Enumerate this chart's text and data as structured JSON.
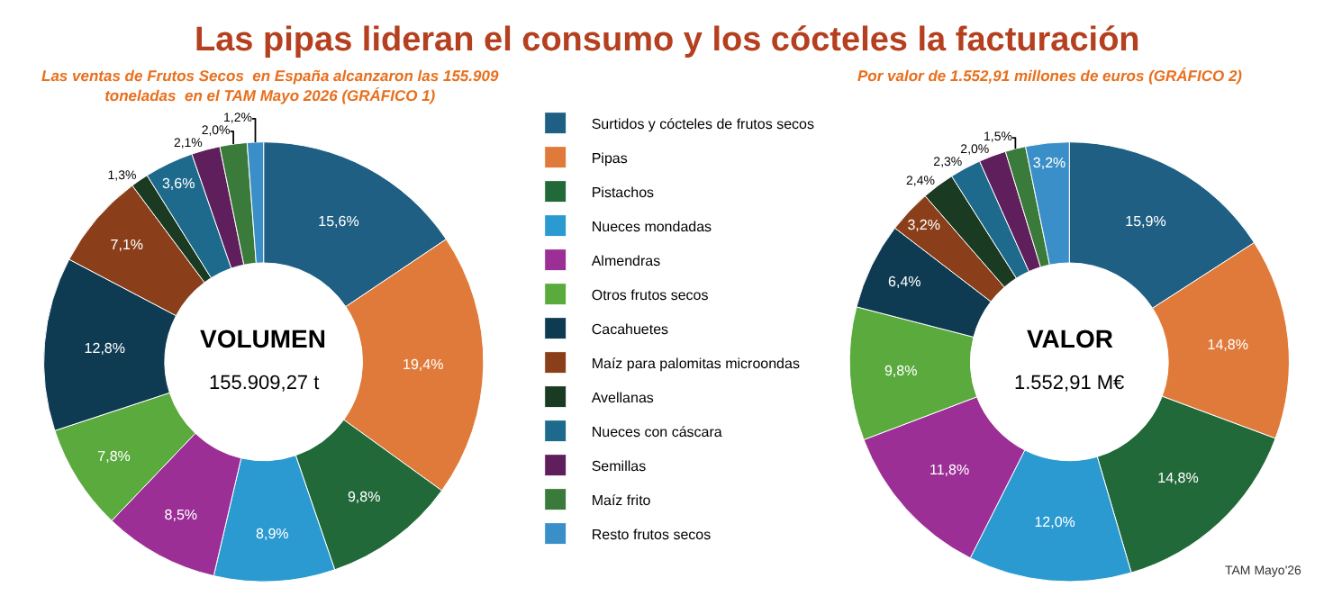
{
  "chart_data": [
    {
      "type": "donut",
      "title": "Las pipas lideran el consumo y los cócteles la facturación",
      "subtitle": "Las ventas de Frutos Secos  en España alcanzaron las 155.909 toneladas  en el TAM Mayo 2026 (GRÁFICO 1)",
      "categories": [
        "Surtidos y cócteles de frutos secos",
        "Pipas",
        "Pistachos",
        "Nueces mondadas",
        "Almendras",
        "Otros frutos secos",
        "Cacahuetes",
        "Maíz para palomitas microondas",
        "Avellanas",
        "Nueces con cáscara",
        "Semillas",
        "Maíz frito",
        "Resto frutos secos"
      ],
      "values": [
        15.6,
        19.4,
        9.8,
        8.9,
        8.5,
        7.8,
        12.8,
        7.1,
        1.3,
        3.6,
        2.1,
        2.0,
        1.2
      ],
      "value_labels": [
        "15,6%",
        "19,4%",
        "9,8%",
        "8,9%",
        "8,5%",
        "7,8%",
        "12,8%",
        "7,1%",
        "1,3%",
        "3,6%",
        "2,1%",
        "2,0%",
        "1,2%"
      ],
      "colors": [
        "#1f5f84",
        "#e07a3a",
        "#22693a",
        "#2a9ad0",
        "#9b2f96",
        "#5aaa3e",
        "#0e3a52",
        "#8a3f1a",
        "#1b3a22",
        "#1e6a8c",
        "#5e1f5c",
        "#3a7a3a",
        "#3a8fc8"
      ],
      "annotations": [
        "VOLUMEN",
        "155.909,27 t"
      ],
      "legend": "right"
    },
    {
      "type": "donut",
      "subtitle": "Por valor de 1.552,91 millones de euros (GRÁFICO 2)",
      "categories": [
        null,
        null,
        null,
        null,
        null,
        null,
        null,
        null,
        null,
        null,
        null,
        null,
        null
      ],
      "values": [
        15.9,
        14.8,
        14.8,
        12.0,
        11.8,
        9.8,
        6.4,
        3.2,
        2.4,
        2.3,
        2.0,
        1.5,
        3.2
      ],
      "value_labels": [
        "15,9%",
        "14,8%",
        "14,8%",
        "12,0%",
        "11,8%",
        "9,8%",
        "6,4%",
        "3,2%",
        "2,4%",
        "2,3%",
        "2,0%",
        "1,5%",
        "3,2%"
      ],
      "colors": [
        "#1f5f84",
        "#e07a3a",
        "#22693a",
        "#2a9ad0",
        "#9b2f96",
        "#5aaa3e",
        "#0e3a52",
        "#8a3f1a",
        "#1b3a22",
        "#1e6a8c",
        "#5e1f5c",
        "#3a7a3a",
        "#3a8fc8"
      ],
      "annotations": [
        "VALOR",
        "1.552,91 M€",
        "TAM Mayo'26"
      ],
      "legend": false
    }
  ]
}
